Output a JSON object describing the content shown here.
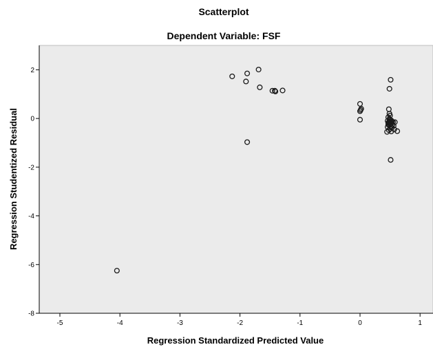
{
  "chart_data": {
    "type": "scatter",
    "title": "Scatterplot",
    "subtitle": "Dependent Variable: FSF",
    "xlabel": "Regression Standardized Predicted Value",
    "ylabel": "Regression Studentized Residual",
    "xlim": [
      -5.3,
      1.2
    ],
    "ylim": [
      -8,
      3
    ],
    "xticks": [
      "-5",
      "-4",
      "-3",
      "-2",
      "-1",
      "0",
      "1"
    ],
    "yticks": [
      "2",
      "0",
      "-2",
      "-4",
      "-6",
      "-8"
    ],
    "grid": false,
    "colors": {
      "plot_bg": "#ebebeb",
      "marker_stroke": "#1a1a1a",
      "axis": "#000000"
    },
    "series": [
      {
        "points": [
          [
            -4.05,
            -6.25
          ],
          [
            -2.13,
            1.73
          ],
          [
            -1.88,
            1.85
          ],
          [
            -1.9,
            1.52
          ],
          [
            -1.69,
            2.01
          ],
          [
            -1.67,
            1.28
          ],
          [
            -1.46,
            1.14
          ],
          [
            -1.42,
            1.14
          ],
          [
            -1.41,
            1.11
          ],
          [
            -1.29,
            1.15
          ],
          [
            -1.88,
            -0.97
          ],
          [
            0.0,
            0.6
          ],
          [
            0.02,
            0.4
          ],
          [
            0.01,
            0.35
          ],
          [
            0.0,
            0.3
          ],
          [
            0.0,
            -0.05
          ],
          [
            0.51,
            1.59
          ],
          [
            0.49,
            1.22
          ],
          [
            0.48,
            0.38
          ],
          [
            0.49,
            0.2
          ],
          [
            0.5,
            0.12
          ],
          [
            0.47,
            0.05
          ],
          [
            0.49,
            -0.02
          ],
          [
            0.5,
            -0.05
          ],
          [
            0.52,
            -0.08
          ],
          [
            0.46,
            -0.1
          ],
          [
            0.49,
            -0.12
          ],
          [
            0.53,
            -0.12
          ],
          [
            0.48,
            -0.15
          ],
          [
            0.5,
            -0.15
          ],
          [
            0.55,
            -0.15
          ],
          [
            0.47,
            -0.18
          ],
          [
            0.52,
            -0.2
          ],
          [
            0.58,
            -0.15
          ],
          [
            0.5,
            -0.22
          ],
          [
            0.54,
            -0.25
          ],
          [
            0.47,
            -0.25
          ],
          [
            0.49,
            -0.28
          ],
          [
            0.56,
            -0.3
          ],
          [
            0.51,
            -0.32
          ],
          [
            0.46,
            -0.35
          ],
          [
            0.53,
            -0.38
          ],
          [
            0.5,
            -0.42
          ],
          [
            0.57,
            -0.45
          ],
          [
            0.48,
            -0.48
          ],
          [
            0.62,
            -0.52
          ],
          [
            0.52,
            -0.53
          ],
          [
            0.45,
            -0.55
          ],
          [
            0.51,
            -1.7
          ]
        ]
      }
    ]
  }
}
